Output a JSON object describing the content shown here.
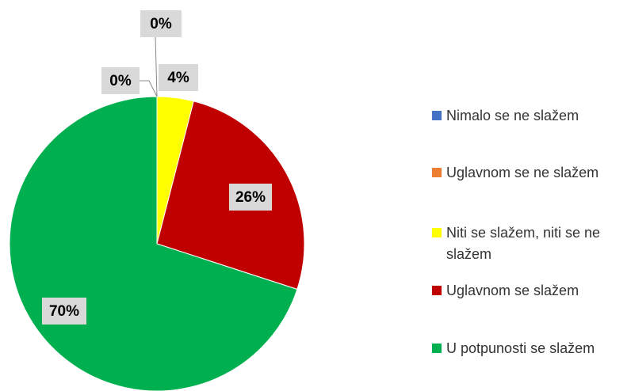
{
  "chart_data": {
    "type": "pie",
    "categories": [
      "Nimalo se ne slažem",
      "Uglavnom se ne slažem",
      "Niti se slažem, niti se ne slažem",
      "Uglavnom se slažem",
      "U potpunosti se slažem"
    ],
    "values": [
      0,
      0,
      4,
      26,
      70
    ],
    "value_labels": [
      "0%",
      "0%",
      "4%",
      "26%",
      "70%"
    ],
    "colors": [
      "#4472c4",
      "#ed7d31",
      "#ffff00",
      "#c00000",
      "#00b050"
    ],
    "legend": "right"
  }
}
